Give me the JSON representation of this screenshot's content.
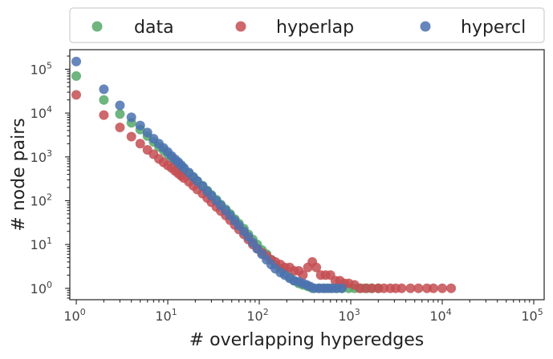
{
  "chart_data": {
    "type": "scatter",
    "title": "",
    "xlabel": "# overlapping hyperedges",
    "ylabel": "# node pairs",
    "xscale": "log",
    "yscale": "log",
    "xlim": [
      0.85,
      130000
    ],
    "ylim": [
      0.55,
      280000
    ],
    "x_ticks": [
      {
        "value": 1,
        "base": "10",
        "exp": "0"
      },
      {
        "value": 10,
        "base": "10",
        "exp": "1"
      },
      {
        "value": 100,
        "base": "10",
        "exp": "2"
      },
      {
        "value": 1000,
        "base": "10",
        "exp": "3"
      },
      {
        "value": 10000,
        "base": "10",
        "exp": "4"
      },
      {
        "value": 100000,
        "base": "10",
        "exp": "5"
      }
    ],
    "y_ticks": [
      {
        "value": 1,
        "base": "10",
        "exp": "0"
      },
      {
        "value": 10,
        "base": "10",
        "exp": "1"
      },
      {
        "value": 100,
        "base": "10",
        "exp": "2"
      },
      {
        "value": 1000,
        "base": "10",
        "exp": "3"
      },
      {
        "value": 10000,
        "base": "10",
        "exp": "4"
      },
      {
        "value": 100000,
        "base": "10",
        "exp": "5"
      }
    ],
    "grid": false,
    "legend_position": "top, outside plot, 3 columns",
    "series": [
      {
        "name": "data",
        "color": "#55a868",
        "points": [
          [
            1,
            70000
          ],
          [
            2,
            20000
          ],
          [
            3,
            9500
          ],
          [
            4,
            6000
          ],
          [
            5,
            4200
          ],
          [
            6,
            3000
          ],
          [
            7,
            2200
          ],
          [
            8,
            1700
          ],
          [
            9,
            1400
          ],
          [
            10,
            1150
          ],
          [
            11,
            950
          ],
          [
            12,
            800
          ],
          [
            13,
            700
          ],
          [
            14,
            600
          ],
          [
            15,
            520
          ],
          [
            17,
            420
          ],
          [
            19,
            340
          ],
          [
            21,
            280
          ],
          [
            24,
            220
          ],
          [
            27,
            170
          ],
          [
            30,
            135
          ],
          [
            34,
            105
          ],
          [
            38,
            82
          ],
          [
            43,
            64
          ],
          [
            48,
            50
          ],
          [
            54,
            38
          ],
          [
            60,
            30
          ],
          [
            68,
            23
          ],
          [
            76,
            17
          ],
          [
            85,
            13
          ],
          [
            95,
            10
          ],
          [
            107,
            7.5
          ],
          [
            120,
            6
          ],
          [
            135,
            4.5
          ],
          [
            150,
            3.5
          ],
          [
            170,
            2.8
          ],
          [
            190,
            2.2
          ],
          [
            215,
            1.8
          ],
          [
            240,
            1.5
          ],
          [
            270,
            1.3
          ],
          [
            300,
            1.2
          ],
          [
            340,
            1.1
          ],
          [
            380,
            1
          ],
          [
            450,
            1
          ],
          [
            520,
            1
          ],
          [
            600,
            1
          ],
          [
            700,
            1
          ],
          [
            800,
            1
          ],
          [
            950,
            1
          ],
          [
            1100,
            1
          ],
          [
            1300,
            1
          ],
          [
            1500,
            1
          ],
          [
            1700,
            1
          ],
          [
            2000,
            1
          ]
        ]
      },
      {
        "name": "hyperlap",
        "color": "#c44e52",
        "points": [
          [
            1,
            26000
          ],
          [
            2,
            9000
          ],
          [
            3,
            4700
          ],
          [
            4,
            2900
          ],
          [
            5,
            2000
          ],
          [
            6,
            1450
          ],
          [
            7,
            1150
          ],
          [
            8,
            900
          ],
          [
            9,
            750
          ],
          [
            10,
            640
          ],
          [
            11,
            560
          ],
          [
            12,
            480
          ],
          [
            13,
            420
          ],
          [
            14,
            370
          ],
          [
            15,
            330
          ],
          [
            17,
            270
          ],
          [
            19,
            220
          ],
          [
            21,
            180
          ],
          [
            24,
            145
          ],
          [
            27,
            115
          ],
          [
            30,
            92
          ],
          [
            34,
            72
          ],
          [
            38,
            58
          ],
          [
            43,
            46
          ],
          [
            48,
            36
          ],
          [
            54,
            28
          ],
          [
            60,
            22
          ],
          [
            68,
            17
          ],
          [
            76,
            13
          ],
          [
            85,
            10
          ],
          [
            95,
            8
          ],
          [
            107,
            6.5
          ],
          [
            120,
            5.5
          ],
          [
            135,
            4.5
          ],
          [
            150,
            4
          ],
          [
            170,
            3.5
          ],
          [
            190,
            3
          ],
          [
            215,
            3
          ],
          [
            240,
            2.5
          ],
          [
            270,
            2.5
          ],
          [
            300,
            2
          ],
          [
            340,
            3
          ],
          [
            380,
            4
          ],
          [
            420,
            3
          ],
          [
            470,
            2
          ],
          [
            530,
            2
          ],
          [
            600,
            2
          ],
          [
            680,
            1.5
          ],
          [
            760,
            1.5
          ],
          [
            850,
            1.3
          ],
          [
            950,
            1.3
          ],
          [
            1100,
            1.2
          ],
          [
            1250,
            1
          ],
          [
            1450,
            1
          ],
          [
            1700,
            1
          ],
          [
            2000,
            1
          ],
          [
            2300,
            1
          ],
          [
            2700,
            1
          ],
          [
            3100,
            1
          ],
          [
            3600,
            1
          ],
          [
            4500,
            1
          ],
          [
            5500,
            1
          ],
          [
            6800,
            1
          ],
          [
            8000,
            1
          ],
          [
            10000,
            1
          ],
          [
            12500,
            1
          ]
        ]
      },
      {
        "name": "hypercl",
        "color": "#4c72b0",
        "points": [
          [
            1,
            150000
          ],
          [
            2,
            35000
          ],
          [
            3,
            15000
          ],
          [
            4,
            8000
          ],
          [
            5,
            5200
          ],
          [
            6,
            3600
          ],
          [
            7,
            2600
          ],
          [
            8,
            2000
          ],
          [
            9,
            1600
          ],
          [
            10,
            1300
          ],
          [
            11,
            1050
          ],
          [
            12,
            880
          ],
          [
            13,
            760
          ],
          [
            14,
            650
          ],
          [
            15,
            560
          ],
          [
            17,
            440
          ],
          [
            19,
            350
          ],
          [
            21,
            280
          ],
          [
            24,
            215
          ],
          [
            27,
            165
          ],
          [
            30,
            130
          ],
          [
            34,
            100
          ],
          [
            38,
            78
          ],
          [
            43,
            60
          ],
          [
            48,
            46
          ],
          [
            54,
            35
          ],
          [
            60,
            27
          ],
          [
            68,
            20
          ],
          [
            76,
            15
          ],
          [
            85,
            11
          ],
          [
            95,
            8
          ],
          [
            107,
            6
          ],
          [
            120,
            4.5
          ],
          [
            135,
            3.5
          ],
          [
            150,
            2.8
          ],
          [
            170,
            2.3
          ],
          [
            190,
            2
          ],
          [
            215,
            1.7
          ],
          [
            240,
            1.5
          ],
          [
            270,
            1.4
          ],
          [
            300,
            1.3
          ],
          [
            330,
            1.2
          ],
          [
            360,
            1.1
          ],
          [
            400,
            1
          ],
          [
            450,
            1
          ],
          [
            500,
            1
          ],
          [
            560,
            1
          ],
          [
            630,
            1
          ],
          [
            700,
            1
          ],
          [
            800,
            1
          ]
        ]
      }
    ]
  }
}
